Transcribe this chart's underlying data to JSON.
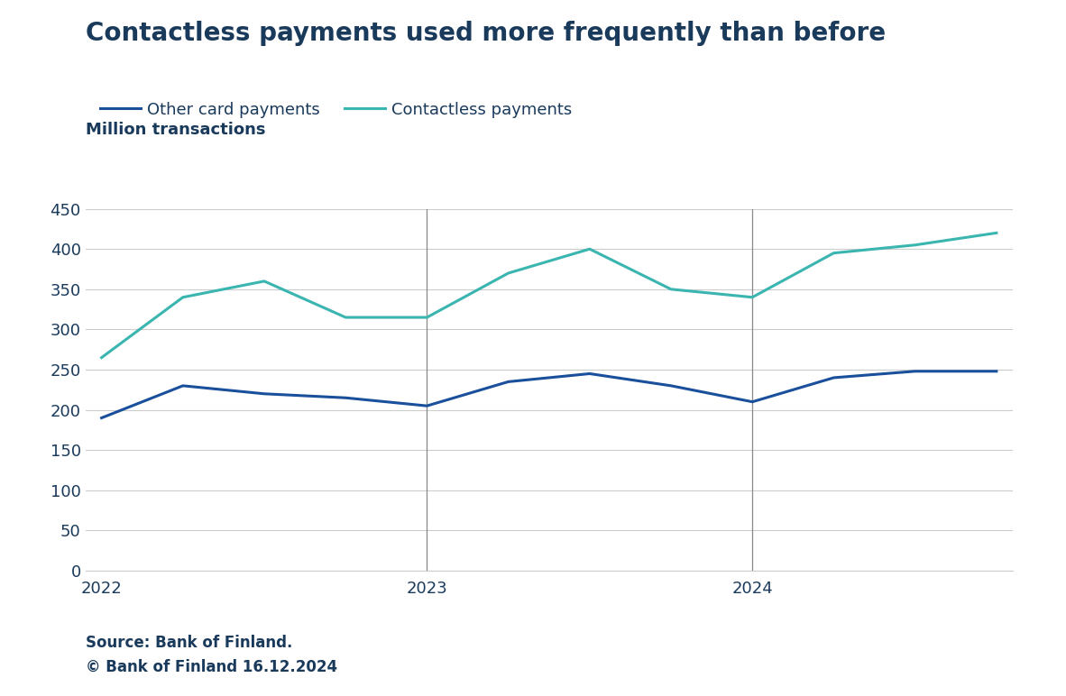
{
  "title": "Contactless payments used more frequently than before",
  "ylabel": "Million transactions",
  "background_color": "#ffffff",
  "plot_bg_color": "#ffffff",
  "title_color": "#1a3a5c",
  "label_color": "#1a3a5c",
  "tick_color": "#1a3a5c",
  "source_text": "Source: Bank of Finland.\n© Bank of Finland 16.12.2024",
  "x_labels": [
    "2022",
    "2023",
    "2024"
  ],
  "x_ticks": [
    0,
    4,
    8
  ],
  "contactless_color": "#3ab5b0",
  "other_color": "#1a4f9c",
  "contactless_label": "Contactless payments",
  "other_label": "Other card payments",
  "contactless_values": [
    265,
    340,
    360,
    315,
    315,
    370,
    400,
    350,
    340,
    395,
    405,
    420
  ],
  "other_values": [
    190,
    230,
    220,
    215,
    205,
    235,
    245,
    230,
    210,
    240,
    248,
    248
  ],
  "ylim": [
    0,
    450
  ],
  "yticks": [
    0,
    50,
    100,
    150,
    200,
    250,
    300,
    350,
    400,
    450
  ],
  "grid_color": "#cccccc",
  "line_width": 2.2,
  "vline_positions": [
    4,
    8
  ],
  "vline_color": "#888888",
  "title_fontsize": 20,
  "label_fontsize": 13,
  "tick_fontsize": 13,
  "source_fontsize": 12
}
